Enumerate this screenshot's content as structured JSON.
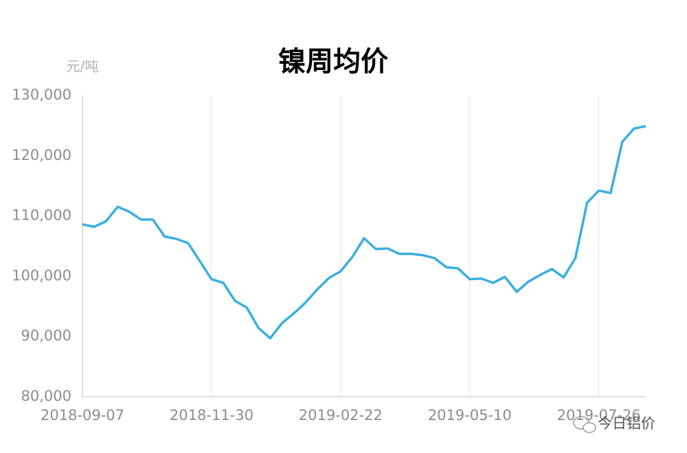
{
  "chart_data": {
    "type": "line",
    "title": "镍周均价",
    "y_unit": "元/吨",
    "categories": [
      "2018-09-07",
      null,
      null,
      null,
      null,
      null,
      null,
      null,
      null,
      null,
      null,
      "2018-11-30",
      null,
      null,
      null,
      null,
      null,
      null,
      null,
      null,
      null,
      null,
      "2019-02-22",
      null,
      null,
      null,
      null,
      null,
      null,
      null,
      null,
      null,
      null,
      "2019-05-10",
      null,
      null,
      null,
      null,
      null,
      null,
      null,
      null,
      null,
      null,
      "2019-07-26",
      null,
      null,
      null,
      null
    ],
    "series": [
      {
        "name": "镍周均价",
        "color": "#3aaee0",
        "values": [
          108600,
          108200,
          109100,
          111500,
          110700,
          109400,
          109400,
          106600,
          106200,
          105500,
          102500,
          99500,
          98900,
          95900,
          94800,
          91400,
          89700,
          92200,
          93800,
          95600,
          97800,
          99700,
          100800,
          103200,
          106300,
          104500,
          104600,
          103700,
          103700,
          103500,
          103000,
          101500,
          101300,
          99500,
          99600,
          98900,
          99900,
          97400,
          99100,
          100200,
          101200,
          99800,
          103000,
          112200,
          114200,
          113800,
          122300,
          124500,
          124900
        ]
      }
    ],
    "ylim": [
      80000,
      130000
    ],
    "yticks": [
      {
        "value": 80000,
        "label": "80,000"
      },
      {
        "value": 90000,
        "label": "90,000"
      },
      {
        "value": 100000,
        "label": "100,000"
      },
      {
        "value": 110000,
        "label": "110,000"
      },
      {
        "value": 120000,
        "label": "120,000"
      },
      {
        "value": 130000,
        "label": "130,000"
      }
    ],
    "grid": "x",
    "watermark": "今日铝价"
  }
}
